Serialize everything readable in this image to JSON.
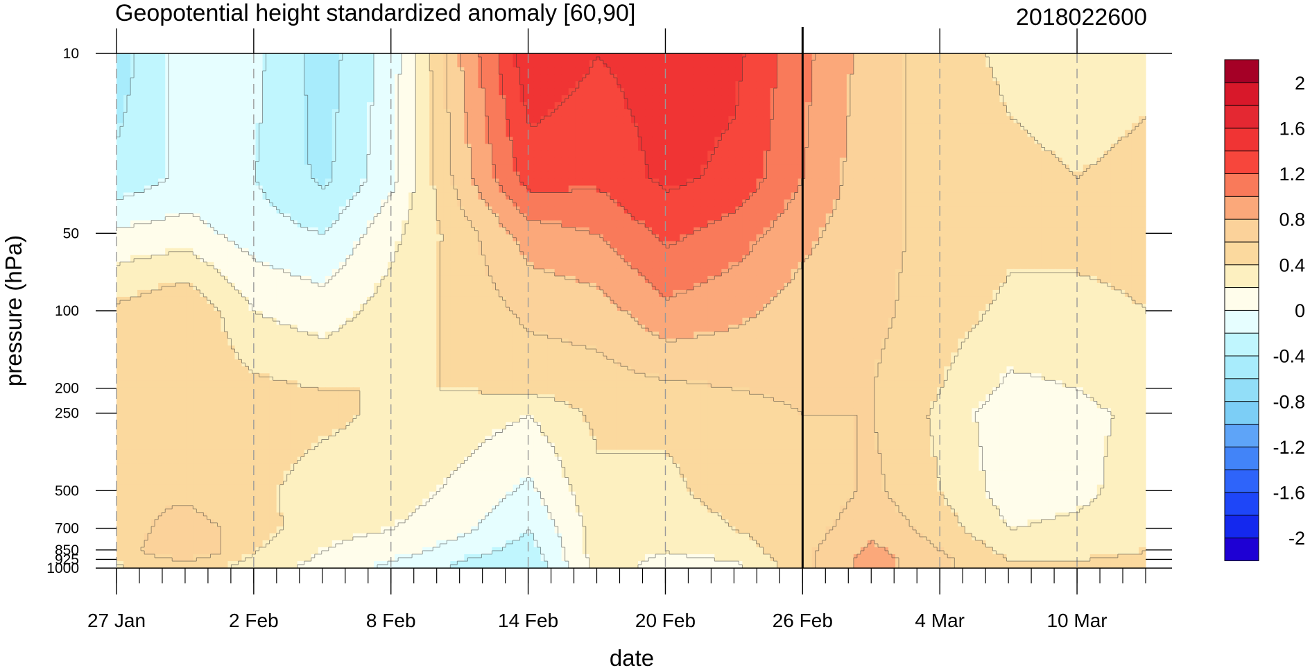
{
  "chart_data": {
    "type": "heatmap",
    "title": "Geopotential height standardized anomaly [60,90]",
    "title_right": "2018022600",
    "xlabel": "date",
    "ylabel": "pressure (hPa)",
    "x_tick_labels": [
      "27 Jan",
      "2 Feb",
      "8 Feb",
      "14 Feb",
      "20 Feb",
      "26 Feb",
      "4 Mar",
      "10 Mar"
    ],
    "y_tick_labels": [
      "10",
      "50",
      "100",
      "200",
      "250",
      "500",
      "700",
      "850",
      "925",
      "1000"
    ],
    "y_scale": "log",
    "x_start": "27 Jan",
    "x_end": "13 Mar",
    "ylim": [
      1000,
      10
    ],
    "grid": "dashed vertical lines at labelled dates",
    "reference_date": "26 Feb",
    "colorbar": {
      "labels": [
        "2",
        "1.6",
        "1.2",
        "0.8",
        "0.4",
        "0",
        "-0.4",
        "-0.8",
        "-1.2",
        "-1.6",
        "-2"
      ],
      "levels": [
        -2.2,
        -2.0,
        -1.8,
        -1.6,
        -1.4,
        -1.2,
        -1.0,
        -0.8,
        -0.6,
        -0.4,
        -0.2,
        0,
        0.2,
        0.4,
        0.6,
        0.8,
        1.0,
        1.2,
        1.4,
        1.6,
        1.8,
        2.0,
        2.2
      ],
      "colors": [
        "#1e00d4",
        "#1428ee",
        "#1e46f8",
        "#2e64fa",
        "#4284f8",
        "#5ea4f8",
        "#7ccef6",
        "#92def8",
        "#a8ecfc",
        "#c0f6fe",
        "#e6feff",
        "#fffdeb",
        "#fdf0c0",
        "#fbd99e",
        "#fbd29a",
        "#fba87a",
        "#f97a5a",
        "#f7463c",
        "#f03434",
        "#e42832",
        "#d8182a",
        "#a50026"
      ]
    },
    "series": [
      {
        "date": "27 Jan",
        "values": {
          "10": -0.5,
          "30": -0.35,
          "50": 0.05,
          "100": 0.45,
          "200": 0.5,
          "250": 0.55,
          "500": 0.6,
          "700": 0.5,
          "850": 0.5,
          "925": 0.45,
          "1000": 0.35
        }
      },
      {
        "date": "30 Jan",
        "values": {
          "10": -0.1,
          "30": -0.15,
          "50": 0.1,
          "100": 0.6,
          "200": 0.55,
          "250": 0.6,
          "500": 0.55,
          "700": 0.7,
          "850": 0.8,
          "925": 0.6,
          "1000": 0.5
        }
      },
      {
        "date": "2 Feb",
        "values": {
          "10": -0.15,
          "30": -0.2,
          "50": -0.1,
          "100": 0.2,
          "200": 0.45,
          "250": 0.5,
          "500": 0.45,
          "700": 0.5,
          "850": 0.4,
          "925": 0.35,
          "1000": 0.3
        }
      },
      {
        "date": "5 Feb",
        "values": {
          "10": -0.5,
          "30": -0.45,
          "50": -0.2,
          "100": 0.1,
          "200": 0.4,
          "250": 0.45,
          "500": 0.3,
          "700": 0.25,
          "850": 0.2,
          "925": 0.15,
          "1000": 0.1
        }
      },
      {
        "date": "8 Feb",
        "values": {
          "10": -0.1,
          "30": -0.05,
          "50": 0.15,
          "100": 0.3,
          "200": 0.4,
          "250": 0.35,
          "500": 0.3,
          "700": 0.2,
          "850": 0.1,
          "925": 0.0,
          "1000": -0.05
        }
      },
      {
        "date": "11 Feb",
        "values": {
          "10": 0.8,
          "30": 0.7,
          "50": 0.5,
          "100": 0.45,
          "200": 0.4,
          "250": 0.3,
          "500": 0.15,
          "700": 0.05,
          "850": -0.1,
          "925": -0.2,
          "1000": -0.25
        }
      },
      {
        "date": "14 Feb",
        "values": {
          "10": 1.55,
          "30": 1.3,
          "50": 0.9,
          "100": 0.65,
          "200": 0.45,
          "250": 0.2,
          "500": -0.05,
          "700": -0.2,
          "850": -0.3,
          "925": -0.35,
          "1000": -0.4
        }
      },
      {
        "date": "17 Feb",
        "values": {
          "10": 1.4,
          "30": 1.25,
          "50": 1.0,
          "100": 0.7,
          "200": 0.5,
          "250": 0.45,
          "500": 0.35,
          "700": 0.3,
          "850": 0.3,
          "925": 0.3,
          "1000": 0.3
        }
      },
      {
        "date": "20 Feb",
        "values": {
          "10": 1.5,
          "30": 1.45,
          "50": 1.25,
          "100": 0.95,
          "200": 0.55,
          "250": 0.45,
          "500": 0.35,
          "700": 0.25,
          "850": 0.2,
          "925": 0.15,
          "1000": 0.1
        }
      },
      {
        "date": "23 Feb",
        "values": {
          "10": 1.45,
          "30": 1.35,
          "50": 1.1,
          "100": 0.85,
          "200": 0.6,
          "250": 0.5,
          "500": 0.5,
          "700": 0.4,
          "850": 0.3,
          "925": 0.2,
          "1000": 0.15
        }
      },
      {
        "date": "26 Feb",
        "values": {
          "10": 1.05,
          "30": 1.0,
          "50": 0.85,
          "100": 0.7,
          "200": 0.65,
          "250": 0.6,
          "500": 0.45,
          "700": 0.5,
          "850": 0.55,
          "925": 0.55,
          "1000": 0.55
        }
      },
      {
        "date": "1 Mar",
        "values": {
          "10": 0.7,
          "30": 0.65,
          "50": 0.65,
          "100": 0.65,
          "200": 0.6,
          "250": 0.6,
          "500": 0.65,
          "700": 0.75,
          "850": 0.85,
          "925": 0.9,
          "1000": 0.9
        }
      },
      {
        "date": "4 Mar",
        "values": {
          "10": 0.5,
          "30": 0.55,
          "50": 0.55,
          "100": 0.5,
          "200": 0.4,
          "250": 0.35,
          "500": 0.4,
          "700": 0.5,
          "850": 0.6,
          "925": 0.65,
          "1000": 0.65
        }
      },
      {
        "date": "7 Mar",
        "values": {
          "10": 0.35,
          "30": 0.45,
          "50": 0.45,
          "100": 0.35,
          "200": 0.15,
          "250": 0.05,
          "500": 0.1,
          "700": 0.2,
          "850": 0.35,
          "925": 0.4,
          "1000": 0.4
        }
      },
      {
        "date": "10 Mar",
        "values": {
          "10": 0.3,
          "30": 0.4,
          "50": 0.45,
          "100": 0.35,
          "200": 0.2,
          "250": 0.15,
          "500": 0.15,
          "700": 0.25,
          "850": 0.35,
          "925": 0.4,
          "1000": 0.4
        }
      },
      {
        "date": "13 Mar",
        "values": {
          "10": 0.35,
          "30": 0.45,
          "50": 0.45,
          "100": 0.4,
          "200": 0.3,
          "250": 0.25,
          "500": 0.3,
          "700": 0.35,
          "850": 0.4,
          "925": 0.45,
          "1000": 0.45
        }
      }
    ]
  }
}
